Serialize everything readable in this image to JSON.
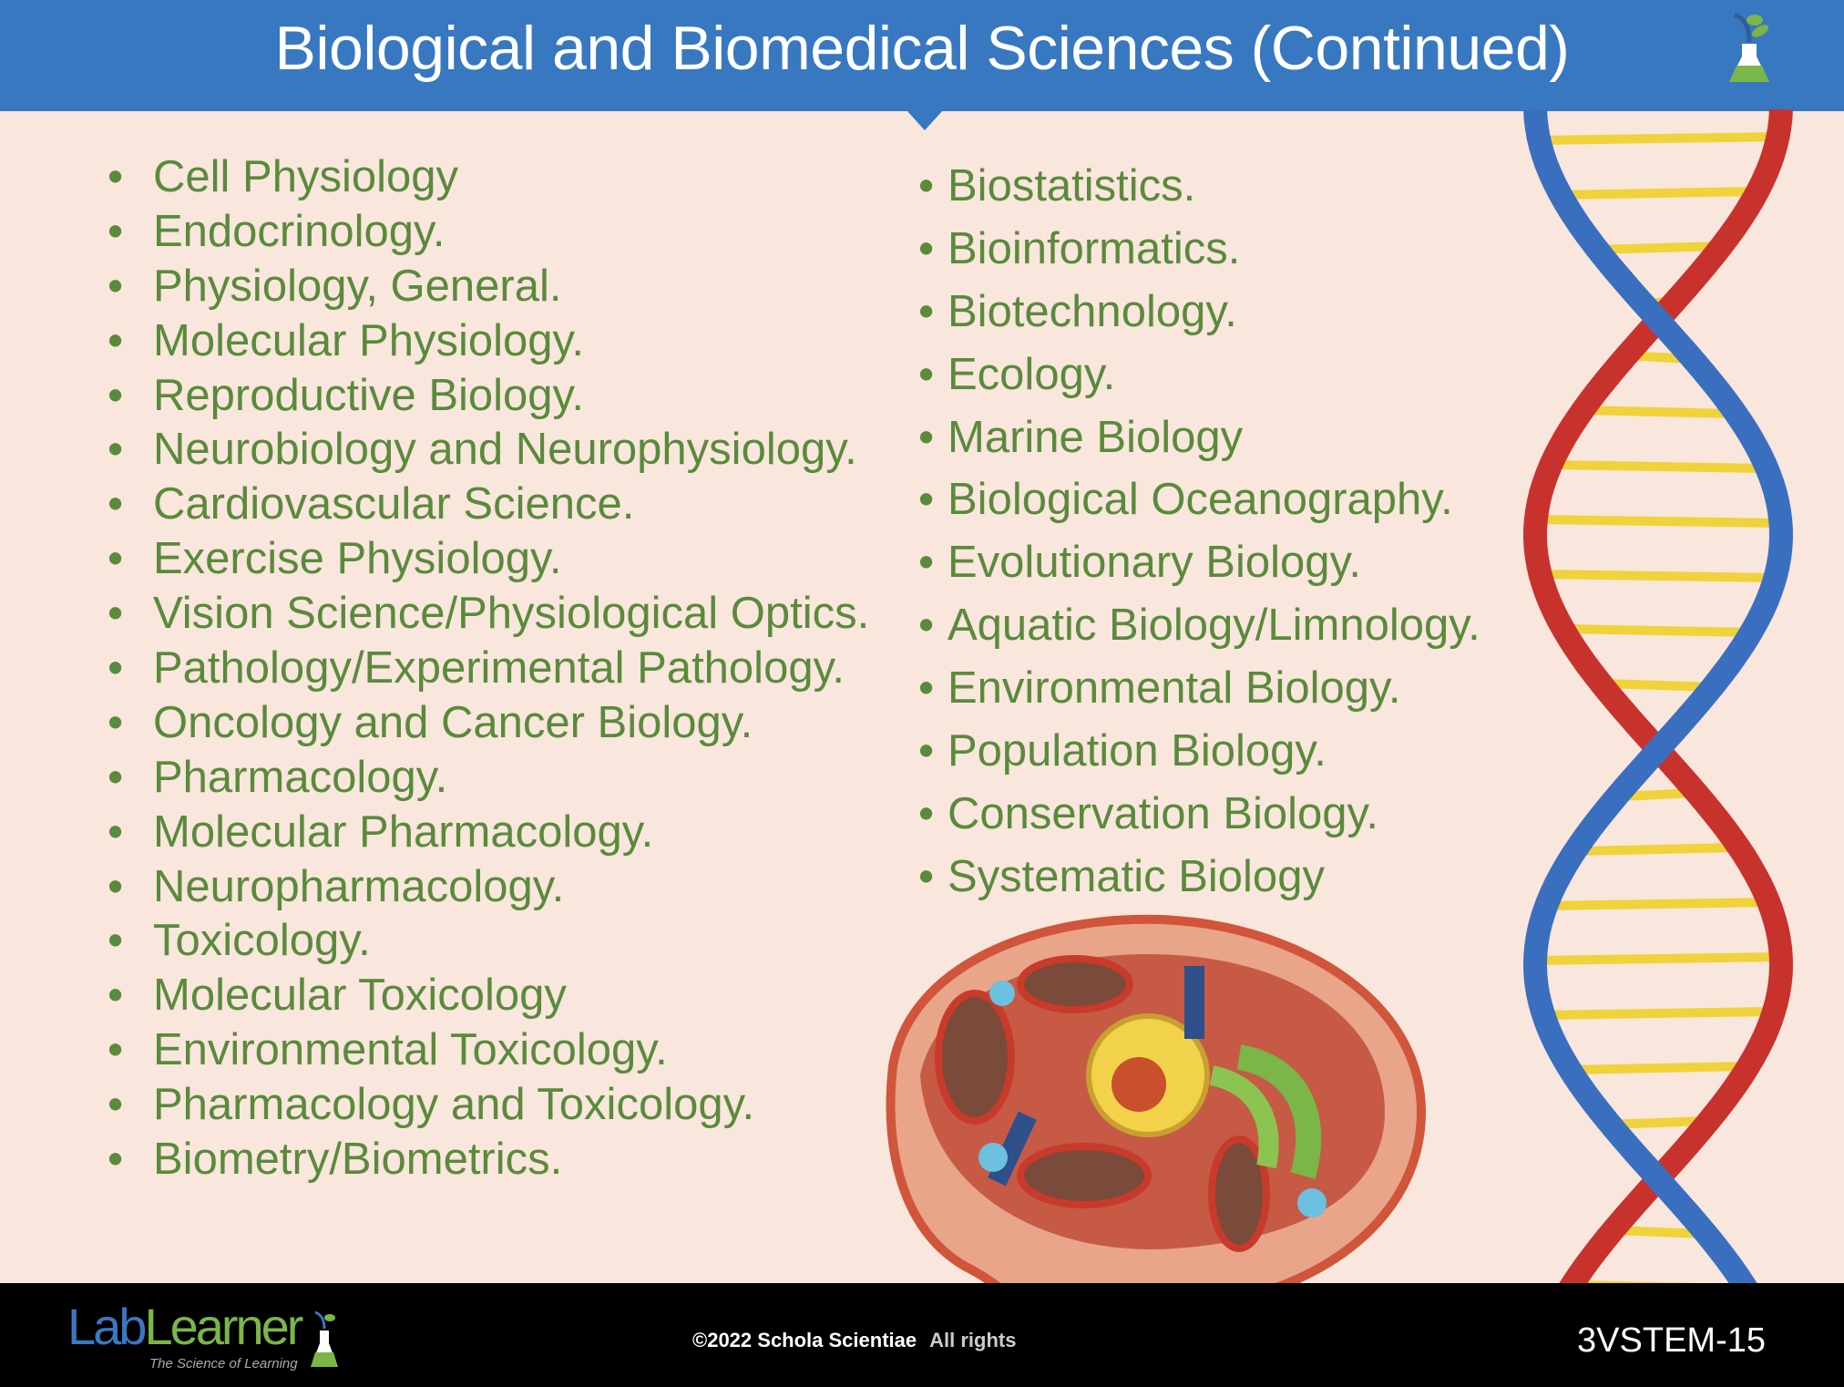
{
  "header": {
    "title": "Biological and Biomedical Sciences (Continued)"
  },
  "left_list": [
    "Cell Physiology",
    "Endocrinology.",
    "Physiology, General.",
    "Molecular Physiology.",
    "Reproductive Biology.",
    "Neurobiology and Neurophysiology.",
    "Cardiovascular Science.",
    "Exercise Physiology.",
    "Vision Science/Physiological Optics.",
    "Pathology/Experimental Pathology.",
    "Oncology and Cancer Biology.",
    "Pharmacology.",
    "Molecular Pharmacology.",
    "Neuropharmacology.",
    "Toxicology.",
    "Molecular Toxicology",
    "Environmental Toxicology.",
    "Pharmacology and Toxicology.",
    "Biometry/Biometrics."
  ],
  "right_list": [
    "Biostatistics.",
    "Bioinformatics.",
    "Biotechnology.",
    "Ecology.",
    "Marine Biology",
    "Biological Oceanography.",
    "Evolutionary Biology.",
    "Aquatic Biology/Limnology.",
    "Environmental Biology.",
    "Population Biology.",
    "Conservation Biology.",
    "Systematic Biology"
  ],
  "bullet": "•",
  "footer": {
    "logo": "LabLearner",
    "logo_tagline": "The Science of Learning",
    "copyright": "©2022 Schola Scientiae",
    "rights": "All rights",
    "slide_code": "3VSTEM-15"
  },
  "colors": {
    "header": "#3878c0",
    "background": "#f9e6dc",
    "text": "#5a8a3c",
    "footer": "#000000"
  }
}
